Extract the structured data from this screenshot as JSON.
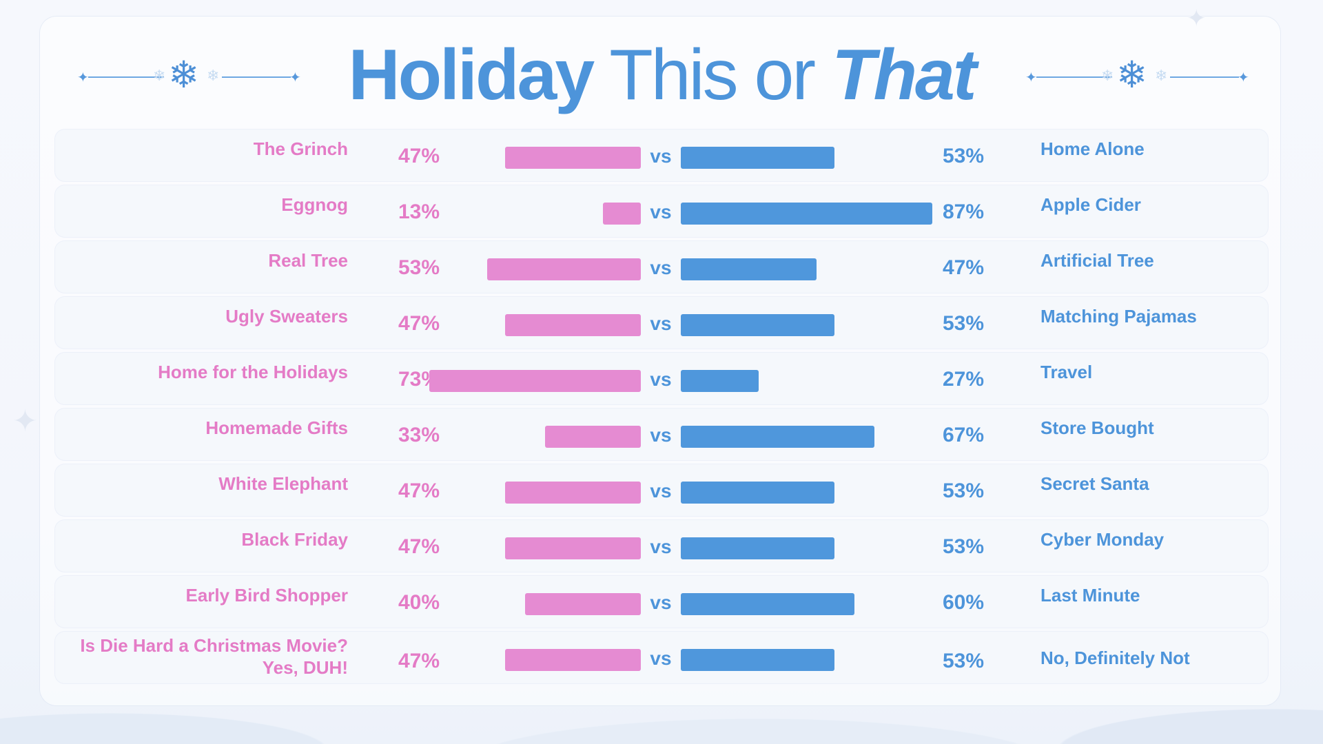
{
  "title": {
    "word1": "Holiday",
    "word2": "This or",
    "word3": "That"
  },
  "colors": {
    "left": "#e58bd2",
    "right": "#4f97dc",
    "left_text": "#e47bc6",
    "right_text": "#4d94da"
  },
  "icons": {
    "ornament": "snowflake-icon",
    "sparkle": "sparkle-icon"
  },
  "chart_data": {
    "type": "bar",
    "orientation": "horizontal-diverging",
    "vs_label": "vs",
    "unit": "%",
    "rows": [
      {
        "left": "The Grinch",
        "left_pct": 47,
        "right": "Home Alone",
        "right_pct": 53
      },
      {
        "left": "Eggnog",
        "left_pct": 13,
        "right": "Apple Cider",
        "right_pct": 87
      },
      {
        "left": "Real Tree",
        "left_pct": 53,
        "right": "Artificial Tree",
        "right_pct": 47
      },
      {
        "left": "Ugly Sweaters",
        "left_pct": 47,
        "right": "Matching Pajamas",
        "right_pct": 53
      },
      {
        "left": "Home for the Holidays",
        "left_pct": 73,
        "right": "Travel",
        "right_pct": 27
      },
      {
        "left": "Homemade Gifts",
        "left_pct": 33,
        "right": "Store Bought",
        "right_pct": 67
      },
      {
        "left": "White Elephant",
        "left_pct": 47,
        "right": "Secret Santa",
        "right_pct": 53
      },
      {
        "left": "Black Friday",
        "left_pct": 47,
        "right": "Cyber Monday",
        "right_pct": 53
      },
      {
        "left": "Early Bird Shopper",
        "left_pct": 40,
        "right": "Last Minute",
        "right_pct": 60
      },
      {
        "left": "Is Die Hard a Christmas Movie?",
        "left_line2": "Yes, DUH!",
        "left_pct": 47,
        "right": "No, Definitely Not",
        "right_pct": 53
      }
    ]
  }
}
